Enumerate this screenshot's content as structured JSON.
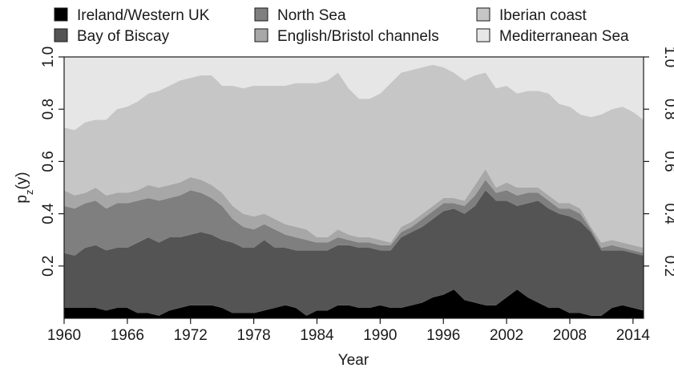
{
  "chart_data": {
    "type": "area",
    "stacked": true,
    "xlabel": "Year",
    "ylabel": "p_z(y)",
    "ylabel_main": "p",
    "ylabel_sub": "z",
    "ylabel_tail": "(y)",
    "xlim": [
      1960,
      2015
    ],
    "ylim": [
      0,
      1
    ],
    "xticks": [
      1960,
      1966,
      1972,
      1978,
      1984,
      1990,
      1996,
      2002,
      2008,
      2014
    ],
    "xtick_labels": [
      "1960",
      "1966",
      "1972",
      "1978",
      "1984",
      "1990",
      "1996",
      "2002",
      "2008",
      "2014"
    ],
    "yticks": [
      0.2,
      0.4,
      0.6,
      0.8,
      1.0
    ],
    "ytick_labels": [
      "0.2",
      "0.4",
      "0.6",
      "0.8",
      "1.0"
    ],
    "grid": false,
    "legend_position": "top",
    "x": [
      1960,
      1961,
      1962,
      1963,
      1964,
      1965,
      1966,
      1967,
      1968,
      1969,
      1970,
      1971,
      1972,
      1973,
      1974,
      1975,
      1976,
      1977,
      1978,
      1979,
      1980,
      1981,
      1982,
      1983,
      1984,
      1985,
      1986,
      1987,
      1988,
      1989,
      1990,
      1991,
      1992,
      1993,
      1994,
      1995,
      1996,
      1997,
      1998,
      1999,
      2000,
      2001,
      2002,
      2003,
      2004,
      2005,
      2006,
      2007,
      2008,
      2009,
      2010,
      2011,
      2012,
      2013,
      2014,
      2015
    ],
    "series": [
      {
        "name": "Ireland/Western UK",
        "color": "#000000",
        "values": [
          0.04,
          0.04,
          0.04,
          0.04,
          0.03,
          0.04,
          0.04,
          0.02,
          0.02,
          0.01,
          0.03,
          0.04,
          0.05,
          0.05,
          0.05,
          0.04,
          0.02,
          0.02,
          0.02,
          0.03,
          0.04,
          0.05,
          0.04,
          0.01,
          0.03,
          0.03,
          0.05,
          0.05,
          0.04,
          0.04,
          0.05,
          0.04,
          0.04,
          0.05,
          0.06,
          0.08,
          0.09,
          0.11,
          0.07,
          0.06,
          0.05,
          0.05,
          0.08,
          0.11,
          0.08,
          0.06,
          0.04,
          0.04,
          0.02,
          0.02,
          0.01,
          0.01,
          0.04,
          0.05,
          0.04,
          0.03
        ]
      },
      {
        "name": "Bay of Biscay",
        "color": "#545454",
        "values": [
          0.21,
          0.2,
          0.23,
          0.24,
          0.23,
          0.23,
          0.23,
          0.27,
          0.29,
          0.28,
          0.28,
          0.27,
          0.27,
          0.28,
          0.27,
          0.26,
          0.27,
          0.25,
          0.25,
          0.27,
          0.23,
          0.22,
          0.22,
          0.25,
          0.23,
          0.23,
          0.23,
          0.23,
          0.23,
          0.23,
          0.21,
          0.22,
          0.27,
          0.28,
          0.29,
          0.3,
          0.32,
          0.31,
          0.33,
          0.37,
          0.44,
          0.4,
          0.37,
          0.32,
          0.36,
          0.39,
          0.38,
          0.36,
          0.37,
          0.35,
          0.32,
          0.25,
          0.22,
          0.21,
          0.21,
          0.21
        ]
      },
      {
        "name": "North Sea",
        "color": "#7f7f7f",
        "values": [
          0.18,
          0.18,
          0.17,
          0.17,
          0.16,
          0.17,
          0.17,
          0.16,
          0.15,
          0.16,
          0.15,
          0.16,
          0.17,
          0.15,
          0.14,
          0.13,
          0.09,
          0.08,
          0.07,
          0.06,
          0.07,
          0.05,
          0.05,
          0.04,
          0.03,
          0.03,
          0.03,
          0.02,
          0.02,
          0.02,
          0.02,
          0.02,
          0.02,
          0.02,
          0.03,
          0.03,
          0.03,
          0.02,
          0.03,
          0.04,
          0.04,
          0.03,
          0.04,
          0.04,
          0.04,
          0.03,
          0.03,
          0.02,
          0.03,
          0.03,
          0.01,
          0.01,
          0.02,
          0.01,
          0.01,
          0.01
        ]
      },
      {
        "name": "English/Bristol channels",
        "color": "#a7a7a7",
        "values": [
          0.06,
          0.05,
          0.04,
          0.05,
          0.05,
          0.04,
          0.04,
          0.04,
          0.05,
          0.05,
          0.05,
          0.05,
          0.05,
          0.05,
          0.05,
          0.05,
          0.05,
          0.05,
          0.05,
          0.04,
          0.04,
          0.04,
          0.04,
          0.04,
          0.02,
          0.02,
          0.03,
          0.02,
          0.02,
          0.02,
          0.02,
          0.01,
          0.02,
          0.02,
          0.02,
          0.02,
          0.02,
          0.02,
          0.02,
          0.04,
          0.04,
          0.02,
          0.03,
          0.03,
          0.02,
          0.02,
          0.02,
          0.02,
          0.02,
          0.02,
          0.01,
          0.02,
          0.02,
          0.02,
          0.02,
          0.02
        ]
      },
      {
        "name": "Iberian coast",
        "color": "#c6c6c6",
        "values": [
          0.24,
          0.25,
          0.27,
          0.26,
          0.29,
          0.32,
          0.33,
          0.34,
          0.35,
          0.37,
          0.38,
          0.39,
          0.38,
          0.4,
          0.42,
          0.41,
          0.46,
          0.48,
          0.5,
          0.49,
          0.51,
          0.53,
          0.55,
          0.56,
          0.59,
          0.6,
          0.6,
          0.56,
          0.53,
          0.53,
          0.56,
          0.61,
          0.59,
          0.58,
          0.56,
          0.54,
          0.5,
          0.48,
          0.46,
          0.42,
          0.37,
          0.38,
          0.37,
          0.36,
          0.37,
          0.37,
          0.39,
          0.38,
          0.37,
          0.36,
          0.42,
          0.49,
          0.5,
          0.52,
          0.51,
          0.49
        ]
      },
      {
        "name": "Mediterranean Sea",
        "color": "#e6e6e6",
        "values": [
          0.27,
          0.28,
          0.25,
          0.24,
          0.24,
          0.2,
          0.19,
          0.17,
          0.14,
          0.13,
          0.11,
          0.09,
          0.08,
          0.07,
          0.07,
          0.11,
          0.11,
          0.12,
          0.11,
          0.11,
          0.11,
          0.11,
          0.1,
          0.1,
          0.1,
          0.09,
          0.06,
          0.12,
          0.16,
          0.16,
          0.14,
          0.1,
          0.06,
          0.05,
          0.04,
          0.03,
          0.04,
          0.06,
          0.09,
          0.07,
          0.06,
          0.12,
          0.11,
          0.14,
          0.13,
          0.13,
          0.14,
          0.18,
          0.19,
          0.22,
          0.23,
          0.22,
          0.2,
          0.19,
          0.21,
          0.24
        ]
      }
    ]
  }
}
